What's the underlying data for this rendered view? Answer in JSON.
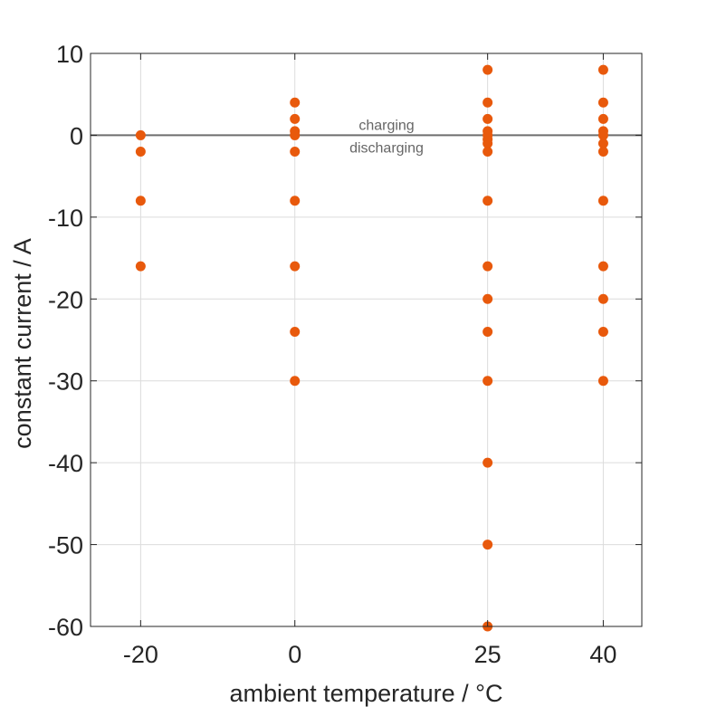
{
  "chart_data": {
    "type": "scatter",
    "title": "",
    "xlabel": "ambient temperature / °C",
    "ylabel": "constant current / A",
    "x_ticks": [
      -20,
      0,
      25,
      40
    ],
    "x_tick_labels": [
      "-20",
      "0",
      "25",
      "40"
    ],
    "y_ticks": [
      10,
      0,
      -10,
      -20,
      -30,
      -40,
      -50,
      -60
    ],
    "y_tick_labels": [
      "10",
      "0",
      "-10",
      "-20",
      "-30",
      "-40",
      "-50",
      "-60"
    ],
    "xlim": [
      -26.5,
      45
    ],
    "ylim": [
      -60,
      10
    ],
    "grid": true,
    "marker_color": "#E8590C",
    "reference_line": {
      "y": 0,
      "color": "#6e6e6e"
    },
    "annotations": {
      "above": "charging",
      "below": "discharging"
    },
    "series": [
      {
        "points": [
          [
            -20,
            0
          ],
          [
            -20,
            -2
          ],
          [
            -20,
            -8
          ],
          [
            -20,
            -16
          ],
          [
            0,
            4
          ],
          [
            0,
            2
          ],
          [
            0,
            0.5
          ],
          [
            0,
            0
          ],
          [
            0,
            -2
          ],
          [
            0,
            -8
          ],
          [
            0,
            -16
          ],
          [
            0,
            -24
          ],
          [
            0,
            -30
          ],
          [
            25,
            8
          ],
          [
            25,
            4
          ],
          [
            25,
            2
          ],
          [
            25,
            0.5
          ],
          [
            25,
            0
          ],
          [
            25,
            -0.5
          ],
          [
            25,
            -1
          ],
          [
            25,
            -2
          ],
          [
            25,
            -8
          ],
          [
            25,
            -16
          ],
          [
            25,
            -20
          ],
          [
            25,
            -24
          ],
          [
            25,
            -30
          ],
          [
            25,
            -40
          ],
          [
            25,
            -50
          ],
          [
            25,
            -60
          ],
          [
            40,
            8
          ],
          [
            40,
            4
          ],
          [
            40,
            2
          ],
          [
            40,
            0.5
          ],
          [
            40,
            0
          ],
          [
            40,
            -1
          ],
          [
            40,
            -2
          ],
          [
            40,
            -8
          ],
          [
            40,
            -16
          ],
          [
            40,
            -20
          ],
          [
            40,
            -24
          ],
          [
            40,
            -30
          ]
        ]
      }
    ]
  }
}
